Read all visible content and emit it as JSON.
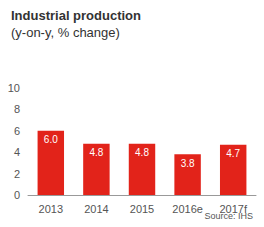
{
  "chart_data": {
    "type": "bar",
    "title": "Industrial production",
    "subtitle": "(y-on-y, % change)",
    "source": "Source: IHS",
    "categories": [
      "2013",
      "2014",
      "2015",
      "2016e",
      "2017f"
    ],
    "values": [
      6.0,
      4.8,
      4.8,
      3.8,
      4.7
    ],
    "value_labels": [
      "6.0",
      "4.8",
      "4.8",
      "3.8",
      "4.7"
    ],
    "data_labels": true,
    "color": "#e2231a",
    "ylim": [
      0,
      10
    ],
    "yticks": [
      0,
      2,
      4,
      6,
      8,
      10
    ],
    "grid": false
  }
}
